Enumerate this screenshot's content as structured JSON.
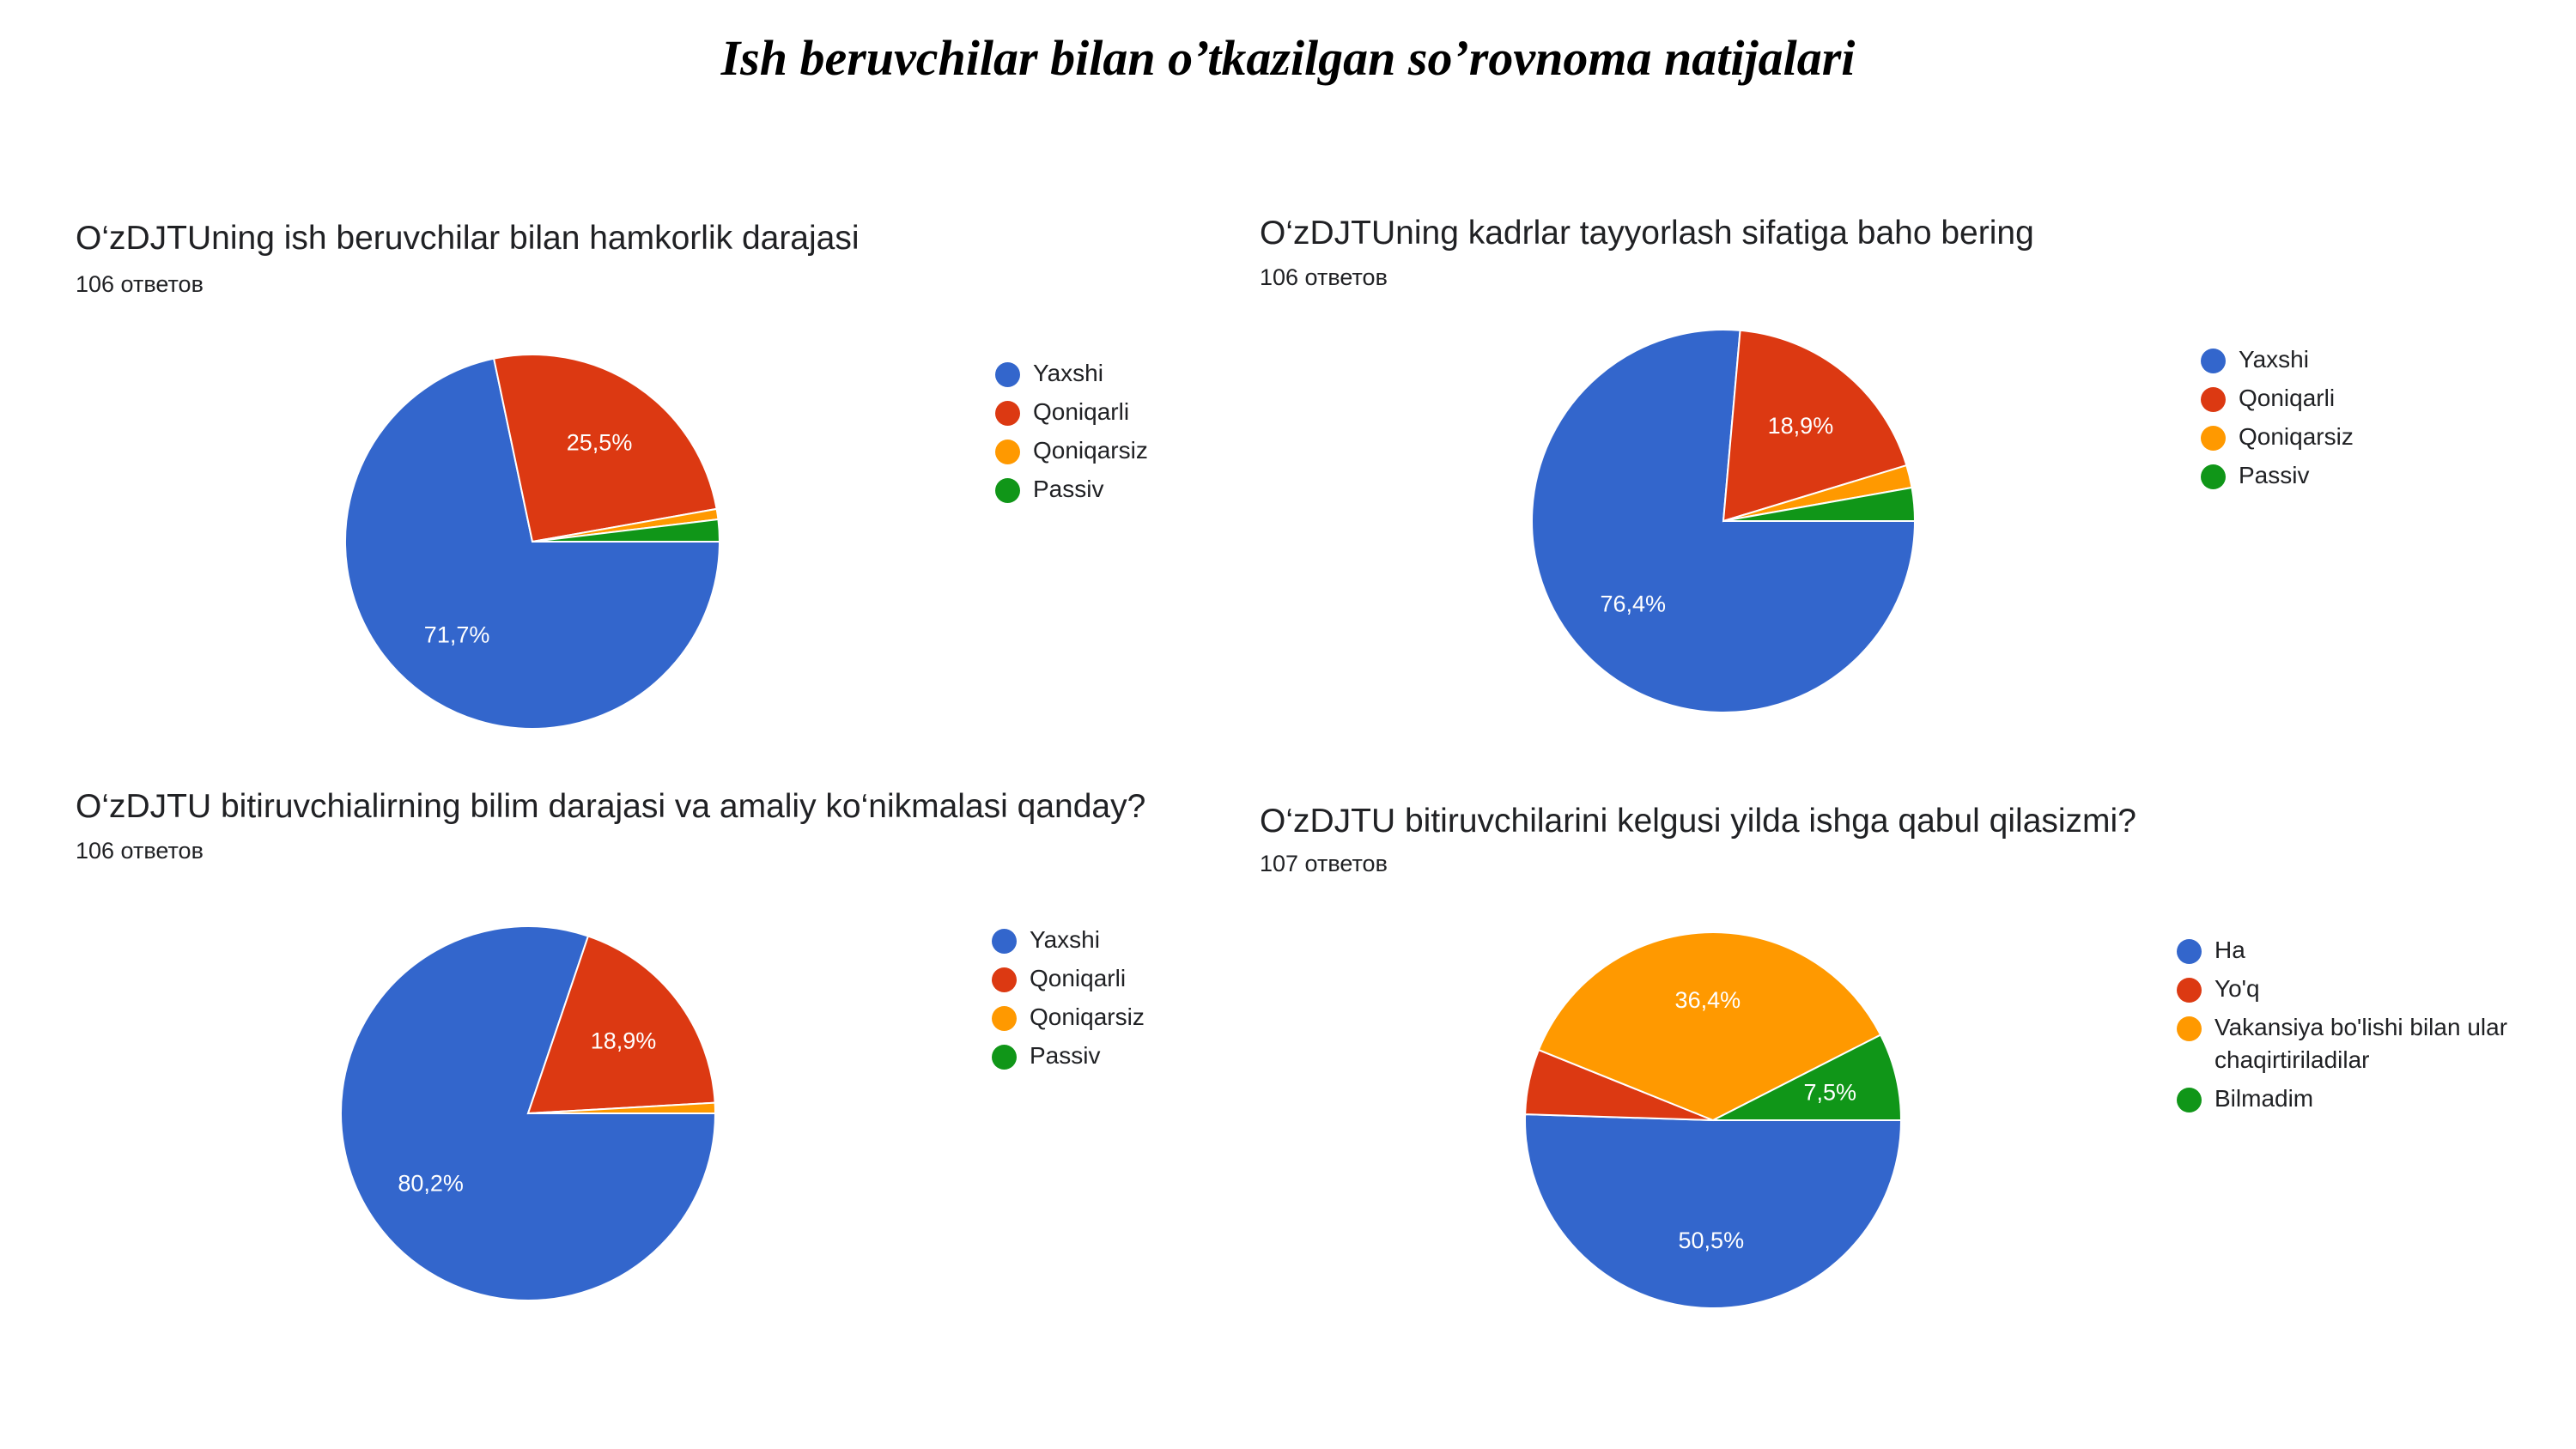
{
  "title": "Ish beruvchilar bilan o’tkazilgan so’rovnoma natijalari",
  "colors": {
    "blue": "#3366cc",
    "red": "#dc3912",
    "orange": "#ff9900",
    "green": "#109618"
  },
  "chart_data": [
    {
      "type": "pie",
      "title": "O‘zDJTUning ish beruvchilar bilan hamkorlik darajasi",
      "subtitle": "106 ответов",
      "categories": [
        "Yaxshi",
        "Qoniqarli",
        "Qoniqarsiz",
        "Passiv"
      ],
      "values": [
        71.7,
        25.5,
        0.9,
        1.9
      ],
      "data_labels": [
        "71,7%",
        "25,5%",
        "",
        ""
      ],
      "colors": [
        "#3366cc",
        "#dc3912",
        "#ff9900",
        "#109618"
      ],
      "legend": "right"
    },
    {
      "type": "pie",
      "title": "O‘zDJTUning kadrlar tayyorlash sifatiga baho bering",
      "subtitle": "106 ответов",
      "categories": [
        "Yaxshi",
        "Qoniqarli",
        "Qoniqarsiz",
        "Passiv"
      ],
      "values": [
        76.4,
        18.9,
        1.9,
        2.8
      ],
      "data_labels": [
        "76,4%",
        "18,9%",
        "",
        ""
      ],
      "colors": [
        "#3366cc",
        "#dc3912",
        "#ff9900",
        "#109618"
      ],
      "legend": "right"
    },
    {
      "type": "pie",
      "title": "O‘zDJTU bitiruvchialirning bilim darajasi va amaliy ko‘nikmalasi qanday?",
      "subtitle": "106 ответов",
      "categories": [
        "Yaxshi",
        "Qoniqarli",
        "Qoniqarsiz",
        "Passiv"
      ],
      "values": [
        80.2,
        18.9,
        0.9,
        0
      ],
      "data_labels": [
        "80,2%",
        "18,9%",
        "",
        ""
      ],
      "colors": [
        "#3366cc",
        "#dc3912",
        "#ff9900",
        "#109618"
      ],
      "legend": "right"
    },
    {
      "type": "pie",
      "title": "O‘zDJTU bitiruvchilarini kelgusi yilda ishga qabul qilasizmi?",
      "subtitle": "107 ответов",
      "categories": [
        "Ha",
        "Yo'q",
        "Vakansiya bo'lishi bilan ular\nchaqirtiriladilar",
        "Bilmadim"
      ],
      "values": [
        50.5,
        5.6,
        36.4,
        7.5
      ],
      "data_labels": [
        "50,5%",
        "",
        "36,4%",
        "7,5%"
      ],
      "colors": [
        "#3366cc",
        "#dc3912",
        "#ff9900",
        "#109618"
      ],
      "legend": "right"
    }
  ]
}
